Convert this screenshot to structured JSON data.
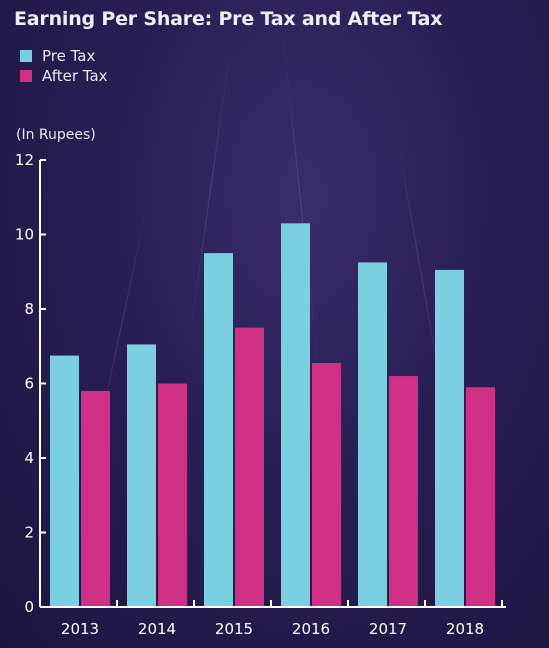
{
  "title": "Earning Per Share: Pre Tax and After Tax",
  "unit_label": "(In Rupees)",
  "colors": {
    "pre_tax": "#7ccfe0",
    "after_tax": "#cf2f85",
    "axis": "#ffffff"
  },
  "chart_data": {
    "type": "bar",
    "title": "Earning Per Share: Pre Tax and After Tax",
    "xlabel": "",
    "ylabel": "(In Rupees)",
    "categories": [
      "2013",
      "2014",
      "2015",
      "2016",
      "2017",
      "2018"
    ],
    "series": [
      {
        "name": "Pre Tax",
        "values": [
          6.75,
          7.05,
          9.5,
          10.3,
          9.25,
          9.05
        ]
      },
      {
        "name": "After Tax",
        "values": [
          5.8,
          6.0,
          7.5,
          6.55,
          6.2,
          5.9
        ]
      }
    ],
    "ylim": [
      0,
      12
    ],
    "yticks": [
      0,
      2,
      4,
      6,
      8,
      10,
      12
    ],
    "grid": false,
    "legend_position": "top-left"
  }
}
